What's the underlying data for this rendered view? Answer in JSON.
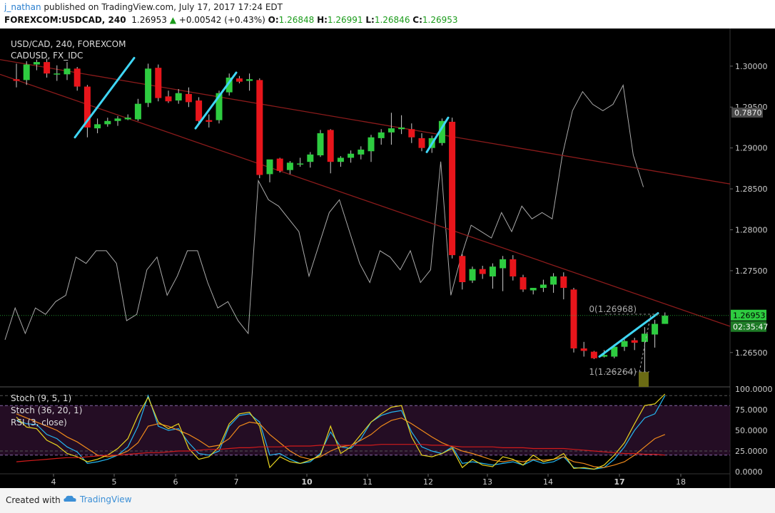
{
  "header": {
    "author": "j_nathan",
    "published_text": "published on TradingView.com, July 17, 2017 17:24 EDT",
    "symbol_info": "FOREXCOM:USDCAD, 240",
    "last_price": "1.26953",
    "change": "+0.00542 (+0.43%)",
    "open_label": "O:",
    "open": "1.26848",
    "high_label": "H:",
    "high": "1.26991",
    "low_label": "L:",
    "low": "1.26846",
    "close_label": "C:",
    "close": "1.26953"
  },
  "footer": {
    "created_with": "Created with",
    "brand": "TradingView"
  },
  "colors": {
    "bull": "#2ecc40",
    "bear": "#e8151b",
    "trend_red": "#8b1b1b",
    "drawing": "#3fd6f5",
    "overlay_line": "#aaaaaa",
    "price_tag": "#2ecc40",
    "axis_text": "#cccccc"
  },
  "chart_data": {
    "type": "candlestick",
    "title": "USD/CAD, 240, FOREXCOM",
    "overlay_label": "CADUSD, FX_IDC",
    "x_tick_labels": [
      "4",
      "5",
      "6",
      "7",
      "10",
      "11",
      "12",
      "13",
      "14",
      "17",
      "18"
    ],
    "y_tick_labels": [
      "1.30000",
      "1.29500",
      "1.29000",
      "1.28500",
      "1.28000",
      "1.27500",
      "1.26500"
    ],
    "ylim": [
      1.2608,
      1.3046
    ],
    "last_price_tag": "1.26953",
    "countdown_tag": "02:35:47",
    "overlay_value_tag": "0.7870",
    "fib_levels": [
      {
        "label": "0(1.26968)",
        "value": 1.26968
      },
      {
        "label": "1(1.26264)",
        "value": 1.26264
      }
    ],
    "candles": [
      {
        "o": 1.2984,
        "h": 1.3003,
        "l": 1.2974,
        "c": 1.2982
      },
      {
        "o": 1.2983,
        "h": 1.3006,
        "l": 1.2977,
        "c": 1.3002
      },
      {
        "o": 1.3002,
        "h": 1.3008,
        "l": 1.2995,
        "c": 1.3005
      },
      {
        "o": 1.3005,
        "h": 1.3009,
        "l": 1.2986,
        "c": 1.2991
      },
      {
        "o": 1.299,
        "h": 1.3001,
        "l": 1.2982,
        "c": 1.2991
      },
      {
        "o": 1.299,
        "h": 1.3005,
        "l": 1.2983,
        "c": 1.2997
      },
      {
        "o": 1.2997,
        "h": 1.2999,
        "l": 1.297,
        "c": 1.2975
      },
      {
        "o": 1.2975,
        "h": 1.2977,
        "l": 1.2913,
        "c": 1.2925
      },
      {
        "o": 1.2924,
        "h": 1.2936,
        "l": 1.2918,
        "c": 1.2929
      },
      {
        "o": 1.2929,
        "h": 1.2937,
        "l": 1.2926,
        "c": 1.2933
      },
      {
        "o": 1.2933,
        "h": 1.2939,
        "l": 1.2927,
        "c": 1.2936
      },
      {
        "o": 1.2935,
        "h": 1.2941,
        "l": 1.2934,
        "c": 1.2937
      },
      {
        "o": 1.2935,
        "h": 1.296,
        "l": 1.2933,
        "c": 1.2954
      },
      {
        "o": 1.2955,
        "h": 1.3003,
        "l": 1.295,
        "c": 1.2997
      },
      {
        "o": 1.2998,
        "h": 1.3002,
        "l": 1.2957,
        "c": 1.2961
      },
      {
        "o": 1.2963,
        "h": 1.297,
        "l": 1.2955,
        "c": 1.2957
      },
      {
        "o": 1.2958,
        "h": 1.2972,
        "l": 1.2954,
        "c": 1.2967
      },
      {
        "o": 1.2966,
        "h": 1.2974,
        "l": 1.295,
        "c": 1.2956
      },
      {
        "o": 1.2958,
        "h": 1.2962,
        "l": 1.2928,
        "c": 1.2933
      },
      {
        "o": 1.2934,
        "h": 1.2941,
        "l": 1.2925,
        "c": 1.2932
      },
      {
        "o": 1.2934,
        "h": 1.297,
        "l": 1.293,
        "c": 1.2967
      },
      {
        "o": 1.2968,
        "h": 1.2991,
        "l": 1.2964,
        "c": 1.2986
      },
      {
        "o": 1.2985,
        "h": 1.2988,
        "l": 1.2979,
        "c": 1.2981
      },
      {
        "o": 1.2982,
        "h": 1.2991,
        "l": 1.297,
        "c": 1.2984
      },
      {
        "o": 1.2983,
        "h": 1.2985,
        "l": 1.2863,
        "c": 1.2867
      },
      {
        "o": 1.2868,
        "h": 1.2883,
        "l": 1.2858,
        "c": 1.2886
      },
      {
        "o": 1.2887,
        "h": 1.2888,
        "l": 1.287,
        "c": 1.2872
      },
      {
        "o": 1.2873,
        "h": 1.2884,
        "l": 1.2868,
        "c": 1.2882
      },
      {
        "o": 1.2881,
        "h": 1.2888,
        "l": 1.2877,
        "c": 1.2881
      },
      {
        "o": 1.2883,
        "h": 1.2895,
        "l": 1.2876,
        "c": 1.2892
      },
      {
        "o": 1.2891,
        "h": 1.2922,
        "l": 1.2889,
        "c": 1.2918
      },
      {
        "o": 1.2922,
        "h": 1.2923,
        "l": 1.2869,
        "c": 1.2883
      },
      {
        "o": 1.2883,
        "h": 1.289,
        "l": 1.2877,
        "c": 1.2888
      },
      {
        "o": 1.2888,
        "h": 1.2897,
        "l": 1.2882,
        "c": 1.2893
      },
      {
        "o": 1.2892,
        "h": 1.2902,
        "l": 1.2886,
        "c": 1.2898
      },
      {
        "o": 1.2896,
        "h": 1.2916,
        "l": 1.2883,
        "c": 1.2913
      },
      {
        "o": 1.2912,
        "h": 1.2923,
        "l": 1.2904,
        "c": 1.2919
      },
      {
        "o": 1.2919,
        "h": 1.2943,
        "l": 1.2904,
        "c": 1.2924
      },
      {
        "o": 1.2923,
        "h": 1.294,
        "l": 1.2917,
        "c": 1.2925
      },
      {
        "o": 1.2923,
        "h": 1.293,
        "l": 1.2906,
        "c": 1.2913
      },
      {
        "o": 1.2912,
        "h": 1.2918,
        "l": 1.2896,
        "c": 1.29
      },
      {
        "o": 1.29,
        "h": 1.2915,
        "l": 1.2894,
        "c": 1.2912
      },
      {
        "o": 1.2906,
        "h": 1.2936,
        "l": 1.2903,
        "c": 1.2933
      },
      {
        "o": 1.2932,
        "h": 1.2937,
        "l": 1.2765,
        "c": 1.2769
      },
      {
        "o": 1.2768,
        "h": 1.277,
        "l": 1.2727,
        "c": 1.2736
      },
      {
        "o": 1.2738,
        "h": 1.2755,
        "l": 1.2735,
        "c": 1.2752
      },
      {
        "o": 1.2752,
        "h": 1.2756,
        "l": 1.274,
        "c": 1.2746
      },
      {
        "o": 1.2743,
        "h": 1.2759,
        "l": 1.2728,
        "c": 1.2755
      },
      {
        "o": 1.2753,
        "h": 1.2768,
        "l": 1.2725,
        "c": 1.2764
      },
      {
        "o": 1.2764,
        "h": 1.2769,
        "l": 1.2738,
        "c": 1.2743
      },
      {
        "o": 1.2742,
        "h": 1.2745,
        "l": 1.2724,
        "c": 1.2727
      },
      {
        "o": 1.2726,
        "h": 1.2729,
        "l": 1.2721,
        "c": 1.2729
      },
      {
        "o": 1.2729,
        "h": 1.2739,
        "l": 1.2724,
        "c": 1.2733
      },
      {
        "o": 1.2733,
        "h": 1.2747,
        "l": 1.2723,
        "c": 1.2743
      },
      {
        "o": 1.2743,
        "h": 1.2748,
        "l": 1.2715,
        "c": 1.2729
      },
      {
        "o": 1.2727,
        "h": 1.2729,
        "l": 1.265,
        "c": 1.2655
      },
      {
        "o": 1.2655,
        "h": 1.2663,
        "l": 1.2645,
        "c": 1.2652
      },
      {
        "o": 1.2651,
        "h": 1.2652,
        "l": 1.2642,
        "c": 1.2643
      },
      {
        "o": 1.2645,
        "h": 1.2653,
        "l": 1.2644,
        "c": 1.2647
      },
      {
        "o": 1.2645,
        "h": 1.266,
        "l": 1.2643,
        "c": 1.2657
      },
      {
        "o": 1.2657,
        "h": 1.2666,
        "l": 1.2652,
        "c": 1.2664
      },
      {
        "o": 1.2665,
        "h": 1.2668,
        "l": 1.2653,
        "c": 1.2662
      },
      {
        "o": 1.2663,
        "h": 1.2681,
        "l": 1.2626,
        "c": 1.2673
      },
      {
        "o": 1.2672,
        "h": 1.269,
        "l": 1.2656,
        "c": 1.2685
      },
      {
        "o": 1.2685,
        "h": 1.2699,
        "l": 1.2685,
        "c": 1.2695
      }
    ],
    "indicators": {
      "ylim": [
        0,
        100
      ],
      "y_tick_labels": [
        "100.0000",
        "75.0000",
        "50.0000",
        "25.0000",
        "0.0000"
      ],
      "series": [
        {
          "name": "Stoch (9, 5, 1)",
          "values": [
            62,
            58,
            57,
            45,
            40,
            30,
            24,
            10,
            12,
            15,
            20,
            30,
            55,
            92,
            55,
            50,
            52,
            35,
            22,
            20,
            25,
            55,
            68,
            70,
            60,
            20,
            22,
            15,
            10,
            12,
            22,
            48,
            30,
            28,
            40,
            60,
            68,
            72,
            74,
            48,
            30,
            25,
            22,
            30,
            10,
            12,
            10,
            8,
            10,
            12,
            8,
            14,
            10,
            12,
            18,
            5,
            4,
            3,
            5,
            15,
            30,
            50,
            65,
            70,
            92
          ]
        },
        {
          "name": "Stoch (36, 20, 1)",
          "values": [
            70,
            65,
            60,
            55,
            50,
            42,
            36,
            28,
            20,
            18,
            20,
            25,
            35,
            55,
            58,
            55,
            50,
            45,
            38,
            30,
            32,
            40,
            55,
            60,
            58,
            45,
            35,
            25,
            18,
            15,
            18,
            25,
            30,
            32,
            38,
            45,
            55,
            62,
            65,
            58,
            50,
            42,
            35,
            30,
            25,
            22,
            18,
            14,
            12,
            14,
            12,
            15,
            14,
            15,
            18,
            12,
            10,
            6,
            5,
            8,
            12,
            20,
            30,
            40,
            45
          ]
        },
        {
          "name": "RSI (3, close)",
          "values": [
            66,
            54,
            52,
            38,
            32,
            22,
            18,
            12,
            15,
            20,
            28,
            40,
            68,
            90,
            60,
            52,
            58,
            28,
            15,
            18,
            30,
            58,
            70,
            72,
            55,
            5,
            18,
            12,
            10,
            14,
            20,
            55,
            22,
            30,
            45,
            60,
            70,
            78,
            80,
            42,
            20,
            18,
            22,
            28,
            5,
            15,
            8,
            6,
            18,
            15,
            8,
            20,
            12,
            15,
            22,
            4,
            5,
            3,
            8,
            20,
            35,
            58,
            80,
            82,
            94
          ]
        },
        {
          "name": "",
          "values": [
            12,
            13,
            14,
            15,
            16,
            17,
            17,
            18,
            19,
            20,
            20,
            21,
            22,
            23,
            23,
            24,
            25,
            25,
            26,
            27,
            27,
            28,
            29,
            29,
            30,
            30,
            30,
            31,
            31,
            31,
            32,
            32,
            32,
            32,
            32,
            32,
            33,
            33,
            33,
            33,
            33,
            32,
            32,
            31,
            30,
            30,
            30,
            30,
            29,
            29,
            29,
            28,
            28,
            28,
            28,
            27,
            26,
            25,
            24,
            23,
            22,
            22,
            21,
            21,
            20
          ]
        }
      ]
    }
  }
}
